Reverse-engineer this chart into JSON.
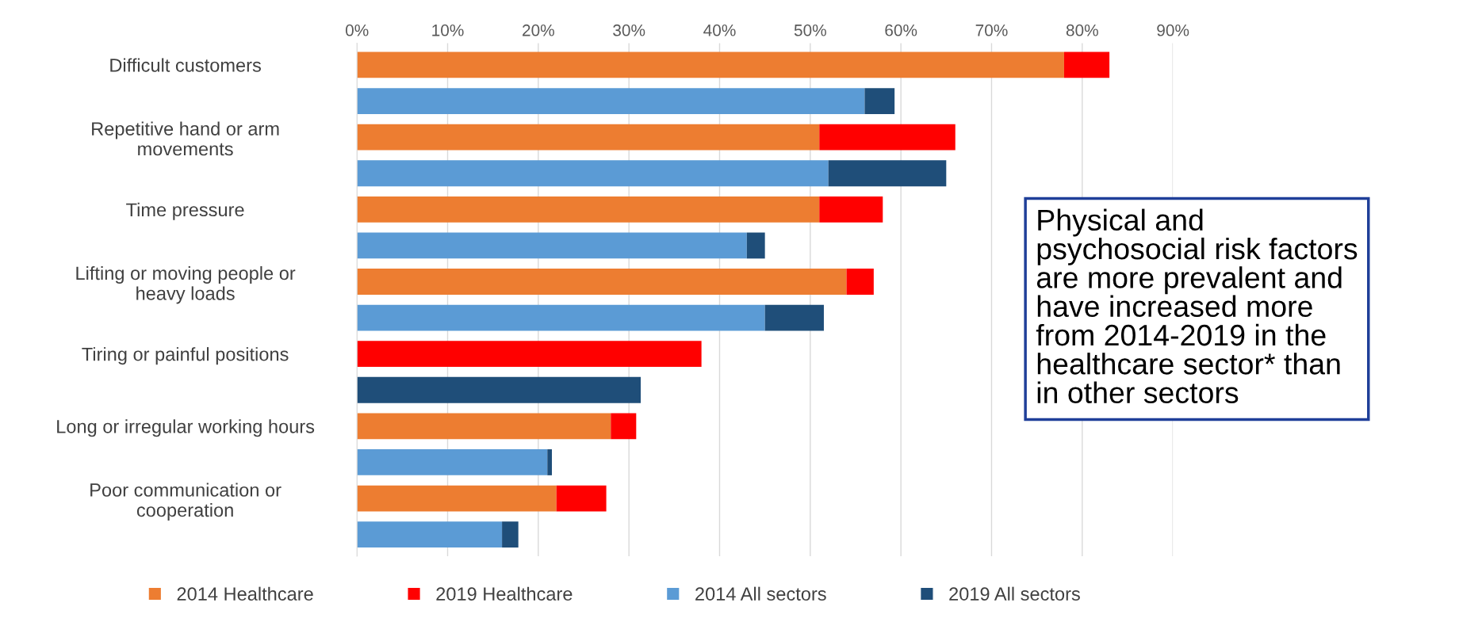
{
  "chart_data": {
    "type": "bar",
    "orientation": "horizontal",
    "stacked": true,
    "categories": [
      "Difficult customers",
      null,
      "Repetitive hand or arm\nmovements",
      null,
      "Time pressure",
      null,
      "Lifting or moving people or\nheavy loads",
      null,
      "Tiring or painful positions",
      null,
      "Long or irregular working hours",
      null,
      "Poor communication or\ncooperation",
      null
    ],
    "series": [
      {
        "name": "2014 Healthcare",
        "color": "#ed7d31",
        "values": [
          78,
          null,
          51,
          null,
          51,
          null,
          54,
          null,
          null,
          null,
          28,
          null,
          22,
          null
        ]
      },
      {
        "name": "2019 Healthcare",
        "color": "#ff0000",
        "values": [
          5,
          null,
          15,
          null,
          7,
          null,
          3,
          null,
          38,
          null,
          2.8,
          null,
          5.5,
          null
        ]
      },
      {
        "name": "2014 All sectors",
        "color": "#5b9bd5",
        "values": [
          null,
          56,
          null,
          52,
          null,
          43,
          null,
          45,
          null,
          null,
          null,
          21,
          null,
          16
        ]
      },
      {
        "name": "2019 All sectors",
        "color": "#1f4e79",
        "values": [
          null,
          3.3,
          null,
          13,
          null,
          2,
          null,
          6.5,
          null,
          31.3,
          null,
          0.5,
          null,
          1.8
        ]
      }
    ],
    "xlim": [
      0,
      90
    ],
    "xticks": [
      {
        "value": 0,
        "label": "0%"
      },
      {
        "value": 10,
        "label": "10%"
      },
      {
        "value": 20,
        "label": "20%"
      },
      {
        "value": 30,
        "label": "30%"
      },
      {
        "value": 40,
        "label": "40%"
      },
      {
        "value": 50,
        "label": "50%"
      },
      {
        "value": 60,
        "label": "60%"
      },
      {
        "value": 70,
        "label": "70%"
      },
      {
        "value": 80,
        "label": "80%"
      },
      {
        "value": 90,
        "label": "90%"
      }
    ],
    "grid": "x",
    "legend": "bottom",
    "annotations": [
      "Physical and\npsychosocial risk factors\nare more prevalent and\nhave increased more\nfrom 2014-2019 in the\nhealthcare sector* than\nin other sectors"
    ]
  }
}
